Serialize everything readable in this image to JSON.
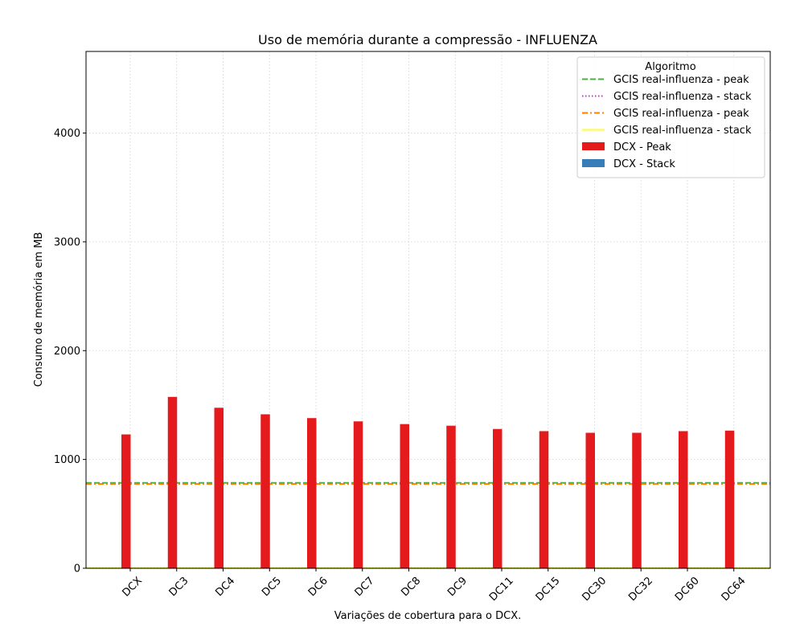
{
  "chart_data": {
    "type": "bar",
    "title": "Uso de memória durante a compressão -  INFLUENZA",
    "xlabel": "Variações de cobertura para o DCX.",
    "ylabel": "Consumo de memória em MB",
    "ylim": [
      0,
      4750
    ],
    "yticks": [
      0,
      1000,
      2000,
      3000,
      4000
    ],
    "grid": true,
    "legend_position": "top-right",
    "legend_title": "Algoritmo",
    "categories": [
      "DCX",
      "DC3",
      "DC4",
      "DC5",
      "DC6",
      "DC7",
      "DC8",
      "DC9",
      "DC11",
      "DC15",
      "DC30",
      "DC32",
      "DC60",
      "DC64"
    ],
    "series": [
      {
        "name": "DCX - Peak",
        "color": "#e41a1c",
        "values": [
          1230,
          1575,
          1475,
          1415,
          1380,
          1350,
          1325,
          1310,
          1280,
          1260,
          1245,
          1245,
          1260,
          1265
        ]
      },
      {
        "name": "DCX - Stack",
        "color": "#377eb8",
        "values": [
          0,
          0,
          0,
          0,
          0,
          0,
          0,
          0,
          0,
          0,
          0,
          0,
          0,
          0
        ]
      }
    ],
    "reference_lines": [
      {
        "name": "GCIS real-influenza - peak",
        "value": 785,
        "color": "#4daf4a",
        "style": "dashed"
      },
      {
        "name": "GCIS real-influenza - stack",
        "value": 2,
        "color": "#984ea3",
        "style": "dotted"
      },
      {
        "name": "GCIS real-influenza - peak",
        "value": 775,
        "color": "#ff7f00",
        "style": "dashdot"
      },
      {
        "name": "GCIS real-influenza - stack",
        "value": 2,
        "color": "#ffff33",
        "style": "solid"
      }
    ]
  }
}
